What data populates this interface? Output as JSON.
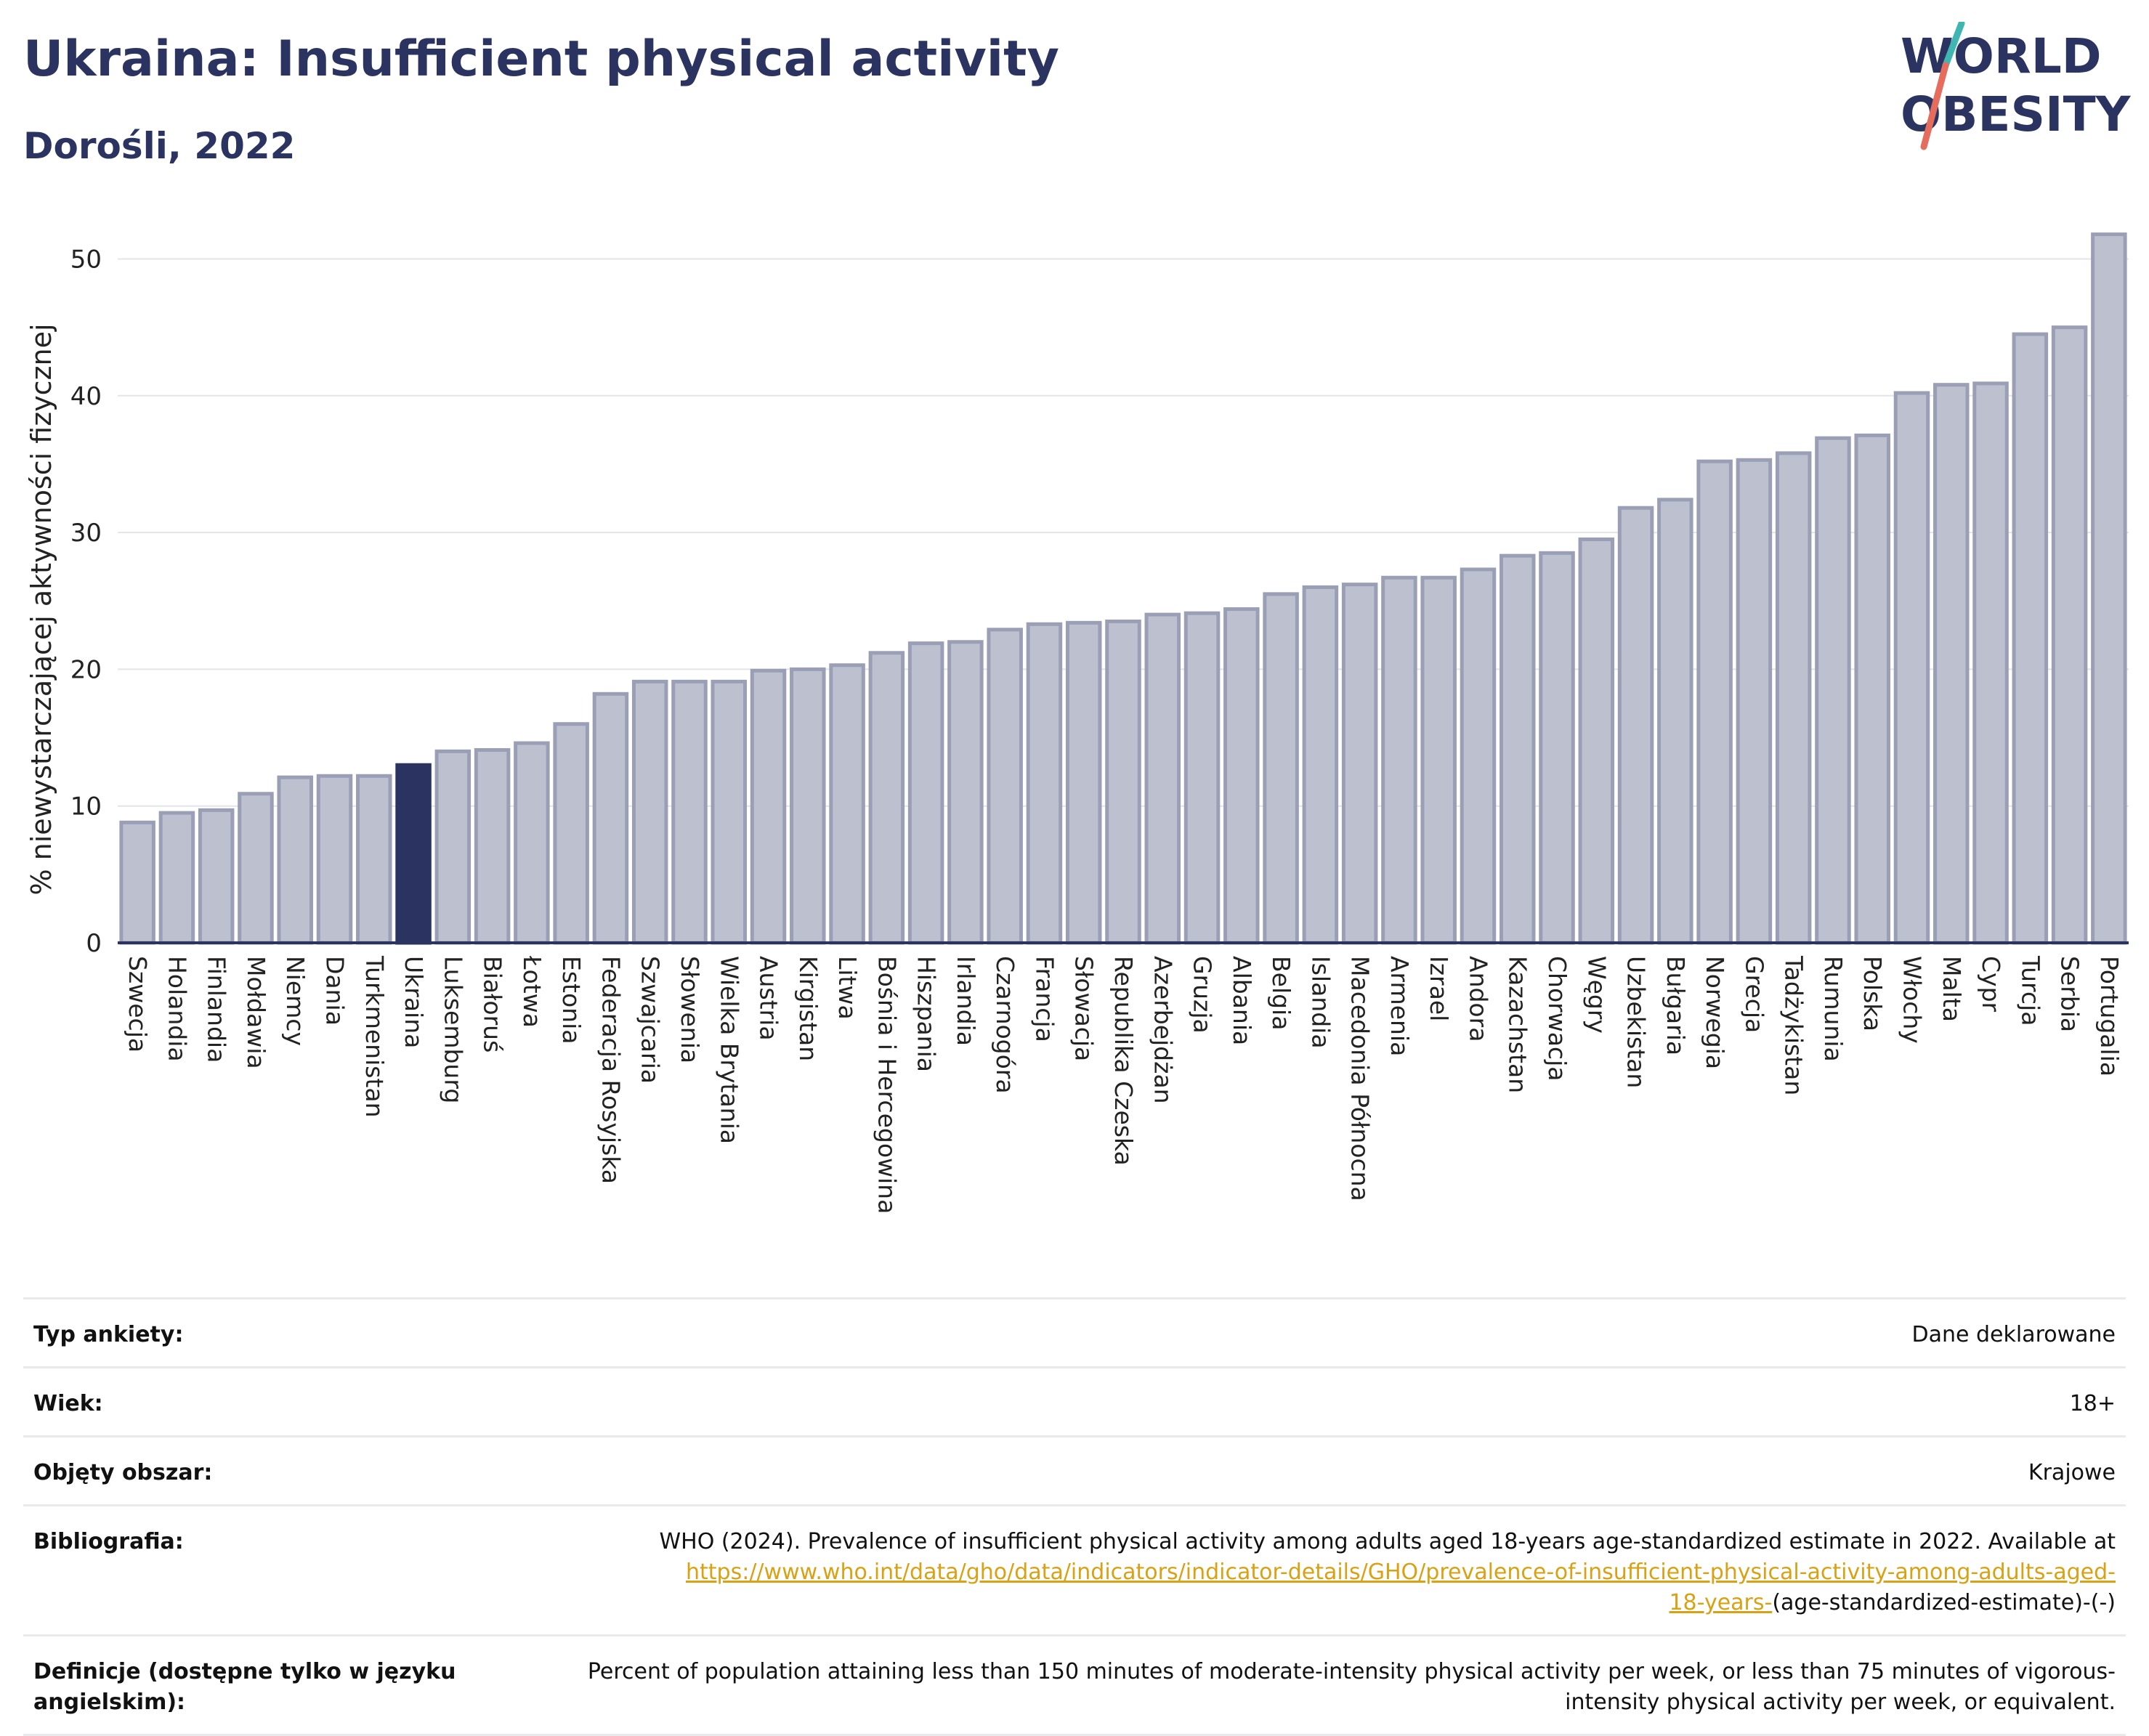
{
  "header": {
    "title": "Ukraina: Insufficient physical activity",
    "subtitle": "Dorośli, 2022",
    "logo_line1": "WORLD",
    "logo_line2": "OBESITY"
  },
  "colors": {
    "title": "#2b3460",
    "bar": "#bcc0cf",
    "bar_stroke": "#9a9fb6",
    "highlight": "#2b3460",
    "link": "#d9a215",
    "logo_slash_top": "#3fb6b2",
    "logo_slash_bottom": "#e46d5d"
  },
  "chart_data": {
    "type": "bar",
    "ylabel": "% niewystarczającej aktywności fizycznej",
    "xlabel": "",
    "ylim": [
      0,
      53
    ],
    "yticks": [
      0,
      10,
      20,
      30,
      40,
      50
    ],
    "grid": true,
    "highlight": "Ukraina",
    "categories": [
      "Szwecja",
      "Holandia",
      "Finlandia",
      "Mołdawia",
      "Niemcy",
      "Dania",
      "Turkmenistan",
      "Ukraina",
      "Luksemburg",
      "Białoruś",
      "Łotwa",
      "Estonia",
      "Federacja Rosyjska",
      "Szwajcaria",
      "Słowenia",
      "Wielka Brytania",
      "Austria",
      "Kirgistan",
      "Litwa",
      "Bośnia i Hercegowina",
      "Hiszpania",
      "Irlandia",
      "Czarnogóra",
      "Francja",
      "Słowacja",
      "Republika Czeska",
      "Azerbejdżan",
      "Gruzja",
      "Albania",
      "Belgia",
      "Islandia",
      "Macedonia Północna",
      "Armenia",
      "Izrael",
      "Andora",
      "Kazachstan",
      "Chorwacja",
      "Węgry",
      "Uzbekistan",
      "Bułgaria",
      "Norwegia",
      "Grecja",
      "Tadżykistan",
      "Rumunia",
      "Polska",
      "Włochy",
      "Malta",
      "Cypr",
      "Turcja",
      "Serbia",
      "Portugalia"
    ],
    "values": [
      8.8,
      9.5,
      9.7,
      10.9,
      12.1,
      12.2,
      12.2,
      13.0,
      14.0,
      14.1,
      14.6,
      16.0,
      18.2,
      19.1,
      19.1,
      19.1,
      19.9,
      20.0,
      20.3,
      21.2,
      21.9,
      22.0,
      22.9,
      23.3,
      23.4,
      23.5,
      24.0,
      24.1,
      24.4,
      25.5,
      26.0,
      26.2,
      26.7,
      26.7,
      27.3,
      28.3,
      28.5,
      29.5,
      31.8,
      32.4,
      35.2,
      35.3,
      35.8,
      36.9,
      37.1,
      40.2,
      40.8,
      40.9,
      44.5,
      45.0,
      51.8
    ]
  },
  "meta": {
    "rows": [
      {
        "key": "Typ ankiety:",
        "value": "Dane deklarowane"
      },
      {
        "key": "Wiek:",
        "value": "18+"
      },
      {
        "key": "Objęty obszar:",
        "value": "Krajowe"
      }
    ],
    "bibliography": {
      "key": "Bibliografia:",
      "text": "WHO (2024). Prevalence of insufficient physical activity among adults aged 18-years age-standardized estimate in 2022. Available at",
      "link_part1": "https://www.who.int/data/gho/data/indicators/indicator-details/GHO/prevalence-of-insufficient-physical-activity-among-adults-aged-",
      "link_part2": "18-years-",
      "suffix": "(age-standardized-estimate)-(-)"
    },
    "definition": {
      "key": "Definicje (dostępne tylko w języku angielskim):",
      "text": "Percent of population attaining less than 150 minutes of moderate-intensity physical activity per week, or less than 75 minutes of vigorous-intensity physical activity per week, or equivalent."
    }
  }
}
